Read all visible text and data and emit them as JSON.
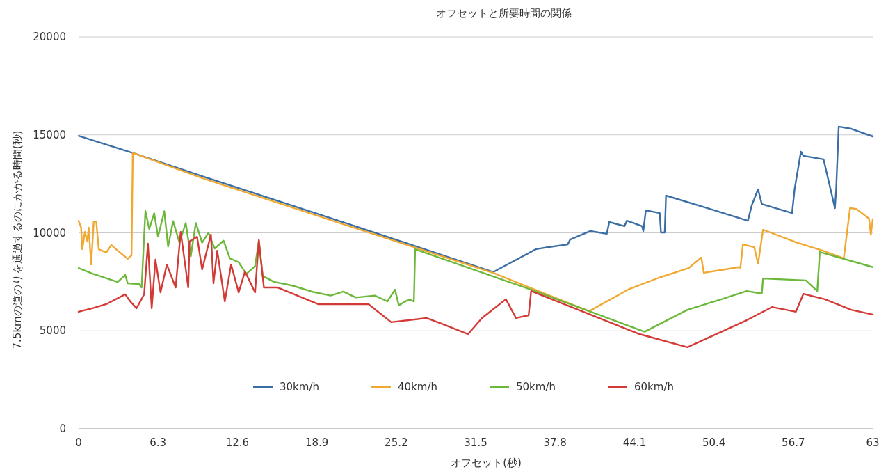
{
  "chart_data": {
    "type": "line",
    "title": "オフセットと所要時間の関係",
    "xlabel": "オフセット(秒)",
    "ylabel": "7.5kmの道のりを通過するのにかかる時間(秒)",
    "xlim": [
      0,
      63
    ],
    "ylim": [
      0,
      20000
    ],
    "xticks": [
      0,
      6.3,
      12.6,
      18.9,
      25.2,
      31.5,
      37.8,
      44.1,
      50.4,
      56.7,
      63
    ],
    "yticks": [
      0,
      5000,
      10000,
      15000,
      20000
    ],
    "grid": "y",
    "legend": "bottom",
    "series": [
      {
        "name": "30km/h",
        "color": "#3a6ea5",
        "x": [
          0,
          4.2,
          10,
          20,
          32.9,
          36.3,
          37.3,
          38.8,
          39.0,
          40.6,
          41.9,
          42.1,
          43.3,
          43.5,
          44.7,
          44.8,
          45.0,
          46.1,
          46.2,
          46.5,
          46.6,
          49.9,
          53.1,
          53.4,
          53.9,
          54.2,
          56.6,
          56.8,
          57.3,
          57.5,
          59.1,
          60.0,
          60.1,
          60.3,
          61.3,
          63
        ],
        "values": [
          14950,
          14100,
          12850,
          10750,
          8000,
          9170,
          9270,
          9410,
          9660,
          10090,
          9950,
          10550,
          10340,
          10620,
          10340,
          10090,
          11150,
          11010,
          10020,
          10020,
          11900,
          11260,
          10620,
          11400,
          12220,
          11470,
          11010,
          12220,
          14140,
          13930,
          13750,
          11260,
          12220,
          15420,
          15310,
          14920
        ]
      },
      {
        "name": "40km/h",
        "color": "#f0a830",
        "x": [
          0,
          0.2,
          0.3,
          0.5,
          0.7,
          0.8,
          1.0,
          1.2,
          1.4,
          1.6,
          2.2,
          2.6,
          3.1,
          3.9,
          4.2,
          4.3,
          10,
          20,
          32.9,
          40.5,
          43.7,
          46,
          48.4,
          49.4,
          49.6,
          52.4,
          52.5,
          52.7,
          53.6,
          53.9,
          54.3,
          57,
          59,
          60.7,
          61.2,
          61.7,
          62.7,
          62.85,
          63
        ],
        "values": [
          10620,
          10270,
          9160,
          10050,
          9560,
          10270,
          8380,
          10580,
          10580,
          9160,
          8990,
          9380,
          9090,
          8670,
          8850,
          14080,
          12750,
          10650,
          7950,
          6000,
          7140,
          7700,
          8200,
          8740,
          7960,
          8250,
          8200,
          9410,
          9270,
          8420,
          10160,
          9500,
          9100,
          8700,
          11260,
          11220,
          10730,
          9900,
          10700
        ]
      },
      {
        "name": "50km/h",
        "color": "#6cb83a",
        "x": [
          0,
          1.1,
          3.1,
          3.7,
          3.9,
          4.8,
          5.0,
          5.3,
          5.6,
          6.0,
          6.3,
          6.8,
          7.1,
          7.5,
          8.0,
          8.5,
          8.9,
          9.3,
          9.8,
          10.3,
          10.8,
          11.5,
          12.0,
          12.7,
          13.3,
          14.0,
          14.3,
          14.6,
          15.5,
          17,
          18.5,
          20,
          21,
          22,
          23.5,
          24.5,
          25.1,
          25.4,
          26.2,
          26.6,
          26.7,
          35.9,
          44.9,
          48.3,
          51.0,
          53.0,
          54.2,
          54.3,
          57.7,
          58.6,
          58.8,
          63
        ],
        "values": [
          8200,
          7920,
          7490,
          7850,
          7420,
          7390,
          7210,
          11120,
          10200,
          11000,
          9800,
          11100,
          9300,
          10600,
          9500,
          10500,
          8800,
          10500,
          9500,
          10000,
          9200,
          9600,
          8700,
          8500,
          7900,
          8300,
          9600,
          7800,
          7500,
          7300,
          7000,
          6800,
          7000,
          6700,
          6800,
          6500,
          7100,
          6300,
          6600,
          6500,
          9160,
          7100,
          4950,
          6070,
          6610,
          7030,
          6900,
          7670,
          7570,
          7030,
          9020,
          8250
        ]
      },
      {
        "name": "60km/h",
        "color": "#d43a35",
        "x": [
          0,
          1.1,
          2.2,
          3.7,
          4.1,
          4.6,
          5.2,
          5.5,
          5.8,
          6.1,
          6.5,
          7.0,
          7.7,
          8.1,
          8.7,
          8.8,
          9.4,
          9.8,
          10.5,
          10.7,
          11.0,
          11.6,
          12.1,
          12.7,
          13.2,
          14.0,
          14.3,
          14.7,
          15.8,
          19.0,
          23.0,
          24.8,
          27.6,
          29.1,
          30.9,
          32.0,
          33.9,
          34.7,
          35.7,
          35.9,
          44.4,
          48.3,
          53.0,
          55.0,
          56.9,
          57.5,
          59.2,
          61.3,
          63
        ],
        "values": [
          5970,
          6150,
          6360,
          6860,
          6500,
          6150,
          6860,
          9450,
          6150,
          8630,
          6960,
          8380,
          7210,
          10050,
          7210,
          9560,
          9800,
          8130,
          9910,
          7420,
          9090,
          6500,
          8380,
          6960,
          8030,
          6960,
          9630,
          7210,
          7210,
          6360,
          6360,
          5440,
          5650,
          5290,
          4830,
          5650,
          6610,
          5650,
          5790,
          7030,
          4850,
          4160,
          5540,
          6210,
          5970,
          6890,
          6610,
          6070,
          5830
        ]
      }
    ]
  }
}
